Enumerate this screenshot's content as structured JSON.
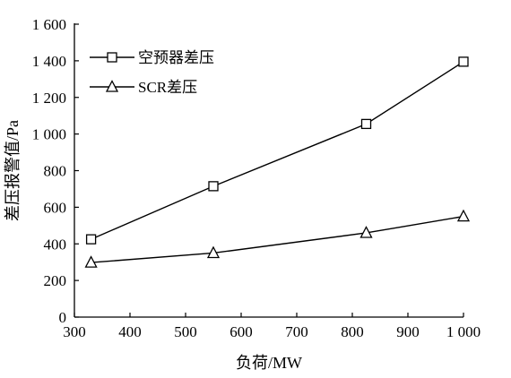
{
  "chart_data": {
    "type": "line",
    "title": "",
    "xlabel": "负荷/MW",
    "ylabel": "差压报警值/Pa",
    "xlim": [
      300,
      1000
    ],
    "ylim": [
      0,
      1600
    ],
    "xticks": [
      300,
      400,
      500,
      600,
      700,
      800,
      900,
      1000
    ],
    "xtick_labels": [
      "300",
      "400",
      "500",
      "600",
      "700",
      "800",
      "900",
      "1 000"
    ],
    "yticks": [
      0,
      200,
      400,
      600,
      800,
      1000,
      1200,
      1400,
      1600
    ],
    "ytick_labels": [
      "0",
      "200",
      "400",
      "600",
      "800",
      "1 000",
      "1 200",
      "1 400",
      "1 600"
    ],
    "grid": false,
    "legend_position": "top-left",
    "series": [
      {
        "name": "空预器差压",
        "marker": "square",
        "x": [
          330,
          550,
          825,
          1000
        ],
        "y": [
          425,
          715,
          1055,
          1395
        ]
      },
      {
        "name": "SCR差压",
        "marker": "triangle",
        "x": [
          330,
          550,
          825,
          1000
        ],
        "y": [
          298,
          350,
          460,
          550
        ]
      }
    ],
    "colors": {
      "line": "#000000",
      "marker_fill": "#ffffff"
    }
  }
}
